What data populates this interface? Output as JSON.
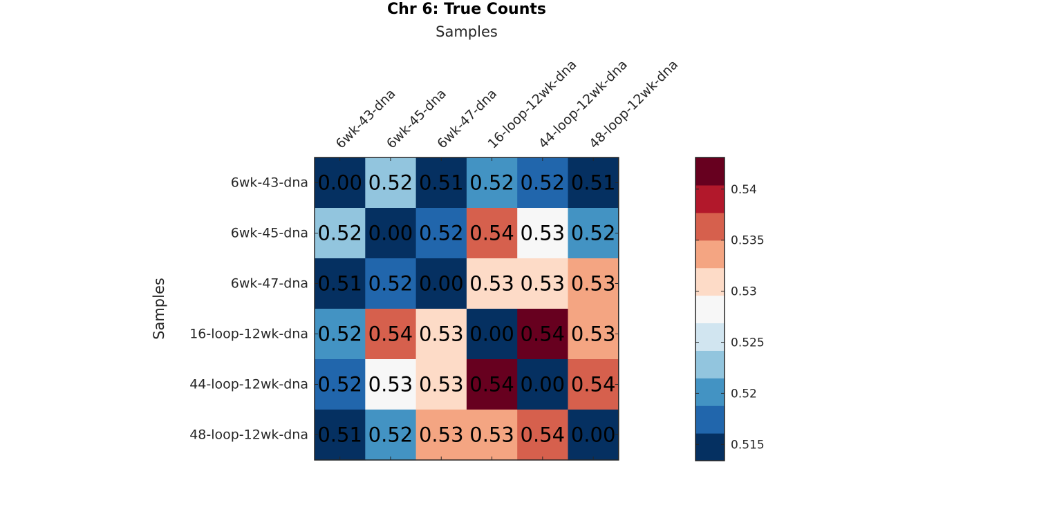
{
  "chart_data": {
    "type": "heatmap",
    "title": "Chr 6: True Counts",
    "xlabel": "Samples",
    "ylabel": "Samples",
    "x_categories": [
      "6wk-43-dna",
      "6wk-45-dna",
      "6wk-47-dna",
      "16-loop-12wk-dna",
      "44-loop-12wk-dna",
      "48-loop-12wk-dna"
    ],
    "y_categories": [
      "6wk-43-dna",
      "6wk-45-dna",
      "6wk-47-dna",
      "16-loop-12wk-dna",
      "44-loop-12wk-dna",
      "48-loop-12wk-dna"
    ],
    "values": [
      [
        0.0,
        0.52,
        0.51,
        0.52,
        0.52,
        0.51
      ],
      [
        0.52,
        0.0,
        0.52,
        0.54,
        0.53,
        0.52
      ],
      [
        0.51,
        0.52,
        0.0,
        0.53,
        0.53,
        0.53
      ],
      [
        0.52,
        0.54,
        0.53,
        0.0,
        0.54,
        0.53
      ],
      [
        0.52,
        0.53,
        0.53,
        0.54,
        0.0,
        0.54
      ],
      [
        0.51,
        0.52,
        0.53,
        0.53,
        0.54,
        0.0
      ]
    ],
    "cell_labels": [
      [
        "0.00",
        "0.52",
        "0.51",
        "0.52",
        "0.52",
        "0.51"
      ],
      [
        "0.52",
        "0.00",
        "0.52",
        "0.54",
        "0.53",
        "0.52"
      ],
      [
        "0.51",
        "0.52",
        "0.00",
        "0.53",
        "0.53",
        "0.53"
      ],
      [
        "0.52",
        "0.54",
        "0.53",
        "0.00",
        "0.54",
        "0.53"
      ],
      [
        "0.52",
        "0.53",
        "0.53",
        "0.54",
        "0.00",
        "0.54"
      ],
      [
        "0.51",
        "0.52",
        "0.53",
        "0.53",
        "0.54",
        "0.00"
      ]
    ],
    "cell_colors": [
      [
        "#053061",
        "#92c5de",
        "#053061",
        "#4393c3",
        "#2166ac",
        "#053061"
      ],
      [
        "#92c5de",
        "#053061",
        "#2166ac",
        "#d6604d",
        "#f7f7f7",
        "#4393c3"
      ],
      [
        "#053061",
        "#2166ac",
        "#053061",
        "#fddbc7",
        "#fddbc7",
        "#f4a582"
      ],
      [
        "#4393c3",
        "#d6604d",
        "#fddbc7",
        "#053061",
        "#67001f",
        "#f4a582"
      ],
      [
        "#2166ac",
        "#f7f7f7",
        "#fddbc7",
        "#67001f",
        "#053061",
        "#d6604d"
      ],
      [
        "#053061",
        "#4393c3",
        "#f4a582",
        "#f4a582",
        "#d6604d",
        "#053061"
      ]
    ],
    "colorbar": {
      "colors": [
        "#053061",
        "#2166ac",
        "#4393c3",
        "#92c5de",
        "#d1e5f0",
        "#f7f7f7",
        "#fddbc7",
        "#f4a582",
        "#d6604d",
        "#b2182b",
        "#67001f"
      ],
      "range": [
        0.5134,
        0.5431
      ],
      "ticks": [
        0.515,
        0.52,
        0.525,
        0.53,
        0.535,
        0.54
      ],
      "tick_labels": [
        "0.515",
        "0.52",
        "0.525",
        "0.53",
        "0.535",
        "0.54"
      ]
    }
  }
}
